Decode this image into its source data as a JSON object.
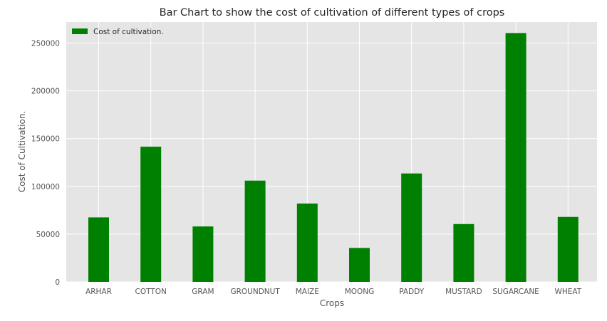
{
  "colors": {
    "bar": "#008000",
    "plot_background": "#e5e5e5",
    "grid": "#ffffff"
  },
  "chart_data": {
    "type": "bar",
    "title": "Bar Chart to show the cost of cultivation of different types of crops",
    "xlabel": "Crops",
    "ylabel": "Cost of Cultivation.",
    "categories": [
      "ARHAR",
      "COTTON",
      "GRAM",
      "GROUNDNUT",
      "MAIZE",
      "MOONG",
      "PADDY",
      "MUSTARD",
      "SUGARCANE",
      "WHEAT"
    ],
    "series": [
      {
        "name": "Cost of cultivation.",
        "values": [
          67500,
          141500,
          58000,
          106000,
          82000,
          35500,
          113500,
          60500,
          260500,
          68000
        ]
      }
    ],
    "ylim": [
      0,
      272000
    ],
    "yticks": [
      0,
      50000,
      100000,
      150000,
      200000,
      250000
    ],
    "grid": true,
    "legend_position": "top-left"
  }
}
